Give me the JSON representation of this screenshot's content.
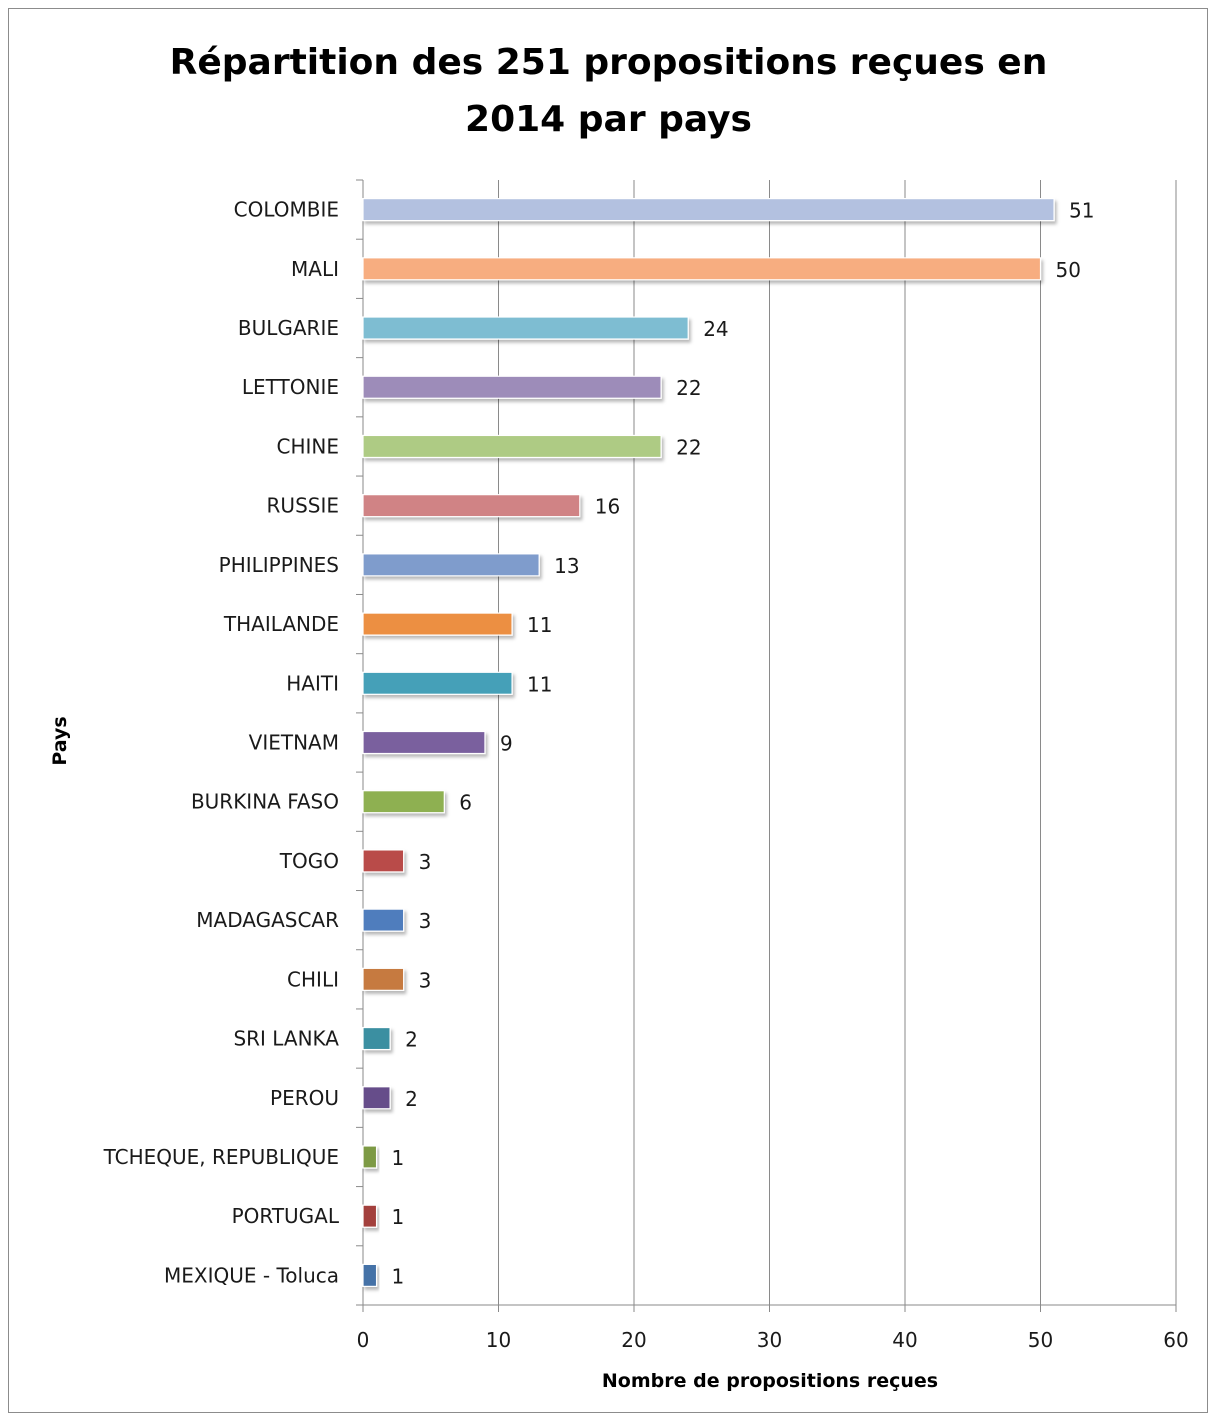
{
  "chart_data": {
    "type": "bar",
    "orientation": "horizontal",
    "title": "Répartition des 251 propositions reçues en 2014 par pays",
    "title_lines": [
      "Répartition des 251 propositions reçues en",
      "2014 par pays"
    ],
    "xlabel": "Nombre de propositions reçues",
    "ylabel": "Pays",
    "xlim": [
      0,
      60
    ],
    "xticks": [
      0,
      10,
      20,
      30,
      40,
      50,
      60
    ],
    "grid": "vertical",
    "legend": "none",
    "categories": [
      "COLOMBIE",
      "MALI",
      "BULGARIE",
      "LETTONIE",
      "CHINE",
      "RUSSIE",
      "PHILIPPINES",
      "THAILANDE",
      "HAITI",
      "VIETNAM",
      "BURKINA FASO",
      "TOGO",
      "MADAGASCAR",
      "CHILI",
      "SRI LANKA",
      "PEROU",
      "TCHEQUE, REPUBLIQUE",
      "PORTUGAL",
      "MEXIQUE - Toluca"
    ],
    "values": [
      51,
      50,
      24,
      22,
      22,
      16,
      13,
      11,
      11,
      9,
      6,
      3,
      3,
      3,
      2,
      2,
      1,
      1,
      1
    ],
    "colors": [
      "#b3c1e0",
      "#f7ad80",
      "#7ebdd2",
      "#9d8cb9",
      "#aecb84",
      "#d08385",
      "#7f9ccc",
      "#ec8f42",
      "#45a0b8",
      "#7a609e",
      "#8eb051",
      "#b94b48",
      "#4f7dbd",
      "#c67a3f",
      "#3b8fa1",
      "#664e8a",
      "#7d9a45",
      "#a3413d",
      "#4572a7"
    ]
  }
}
